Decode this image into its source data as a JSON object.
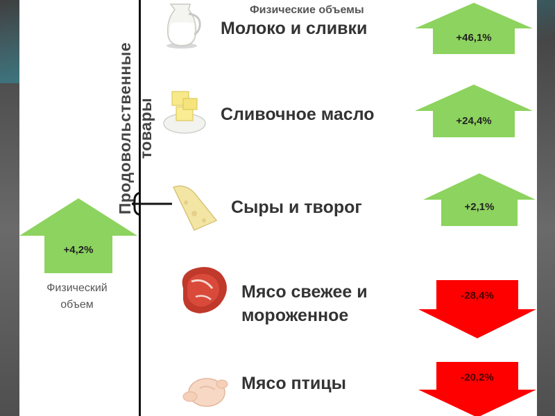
{
  "header": {
    "label": "Физические объемы"
  },
  "category": {
    "line1": "Продовольственные",
    "line2": "товары"
  },
  "summary": {
    "value": "+4,2%",
    "direction": "up",
    "label_line1": "Физический",
    "label_line2": "объем"
  },
  "items": [
    {
      "name_line1": "Молоко и сливки",
      "name_line2": "",
      "value": "+46,1%",
      "direction": "up",
      "icon": "milk-jug-icon"
    },
    {
      "name_line1": "Сливочное масло",
      "name_line2": "",
      "value": "+24,4%",
      "direction": "up",
      "icon": "butter-icon"
    },
    {
      "name_line1": "Сыры и творог",
      "name_line2": "",
      "value": "+2,1%",
      "direction": "up",
      "icon": "cheese-icon"
    },
    {
      "name_line1": "Мясо свежее и",
      "name_line2": "мороженное",
      "value": "-28,4%",
      "direction": "down",
      "icon": "meat-steak-icon"
    },
    {
      "name_line1": "Мясо птицы",
      "name_line2": "",
      "value": "-20,2%",
      "direction": "down",
      "icon": "chicken-icon"
    }
  ],
  "colors": {
    "up": "#8dd35f",
    "down": "#ff0000",
    "text": "#333333"
  }
}
